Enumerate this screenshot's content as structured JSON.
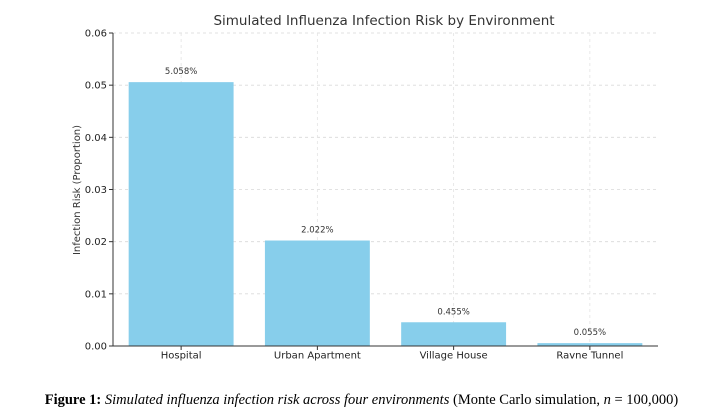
{
  "chart_data": {
    "type": "bar",
    "title": "Simulated Influenza Infection Risk by Environment",
    "xlabel": "",
    "ylabel": "Infection Risk (Proportion)",
    "categories": [
      "Hospital",
      "Urban Apartment",
      "Village House",
      "Ravne Tunnel"
    ],
    "values": [
      0.05058,
      0.02022,
      0.00455,
      0.00055
    ],
    "value_labels": [
      "5.058%",
      "2.022%",
      "0.455%",
      "0.055%"
    ],
    "ylim": [
      0,
      0.06
    ],
    "yticks": [
      "0.00",
      "0.01",
      "0.02",
      "0.03",
      "0.04",
      "0.05",
      "0.06"
    ],
    "grid": true,
    "bar_color": "#87ceeb"
  },
  "caption": {
    "label": "Figure 1:",
    "text": "Simulated influenza infection risk across four environments",
    "paren_open": "(Monte Carlo simulation, ",
    "n_var": "n",
    "n_value": " = 100,000)"
  }
}
